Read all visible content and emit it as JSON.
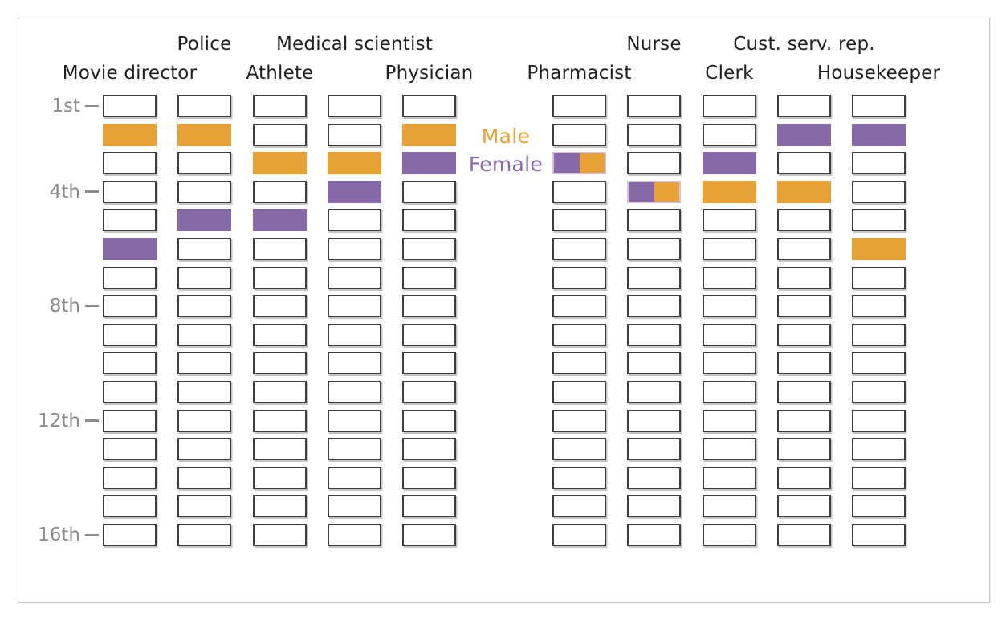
{
  "chart_data": {
    "type": "heatmap",
    "description": "Ranked-grid chart: each occupation column has 16 stacked rank slots (1st = top). A filled cell marks the rank given by Male (orange) or Female (purple) respondents; ties show a half-purple / half-orange cell.",
    "rank_axis": {
      "total_rows": 16,
      "tick_rows": [
        1,
        4,
        8,
        12,
        16
      ],
      "tick_labels": [
        "1st",
        "4th",
        "8th",
        "12th",
        "16th"
      ]
    },
    "legend": {
      "position": "between Physician and Pharmacist columns, rows 2-3",
      "items": [
        {
          "label": "Male",
          "color": "#E8A136"
        },
        {
          "label": "Female",
          "color": "#8569A9"
        }
      ]
    },
    "occupations": [
      {
        "name": "Movie director",
        "header_row": "bottom",
        "male_rank": 2,
        "female_rank": 6,
        "tie": false
      },
      {
        "name": "Police",
        "header_row": "top",
        "male_rank": 2,
        "female_rank": 5,
        "tie": false
      },
      {
        "name": "Athlete",
        "header_row": "bottom",
        "male_rank": 3,
        "female_rank": 5,
        "tie": false
      },
      {
        "name": "Medical scientist",
        "header_row": "top",
        "male_rank": 3,
        "female_rank": 4,
        "tie": false
      },
      {
        "name": "Physician",
        "header_row": "bottom",
        "male_rank": 2,
        "female_rank": 3,
        "tie": false
      },
      {
        "name": "Pharmacist",
        "header_row": "bottom",
        "male_rank": 3,
        "female_rank": 3,
        "tie": true
      },
      {
        "name": "Nurse",
        "header_row": "top",
        "male_rank": 4,
        "female_rank": 4,
        "tie": true
      },
      {
        "name": "Clerk",
        "header_row": "bottom",
        "male_rank": 4,
        "female_rank": 3,
        "tie": false
      },
      {
        "name": "Cust. serv. rep.",
        "header_row": "top",
        "male_rank": 4,
        "female_rank": 2,
        "tie": false
      },
      {
        "name": "Housekeeper",
        "header_row": "bottom",
        "male_rank": 6,
        "female_rank": 2,
        "tie": false
      }
    ]
  }
}
